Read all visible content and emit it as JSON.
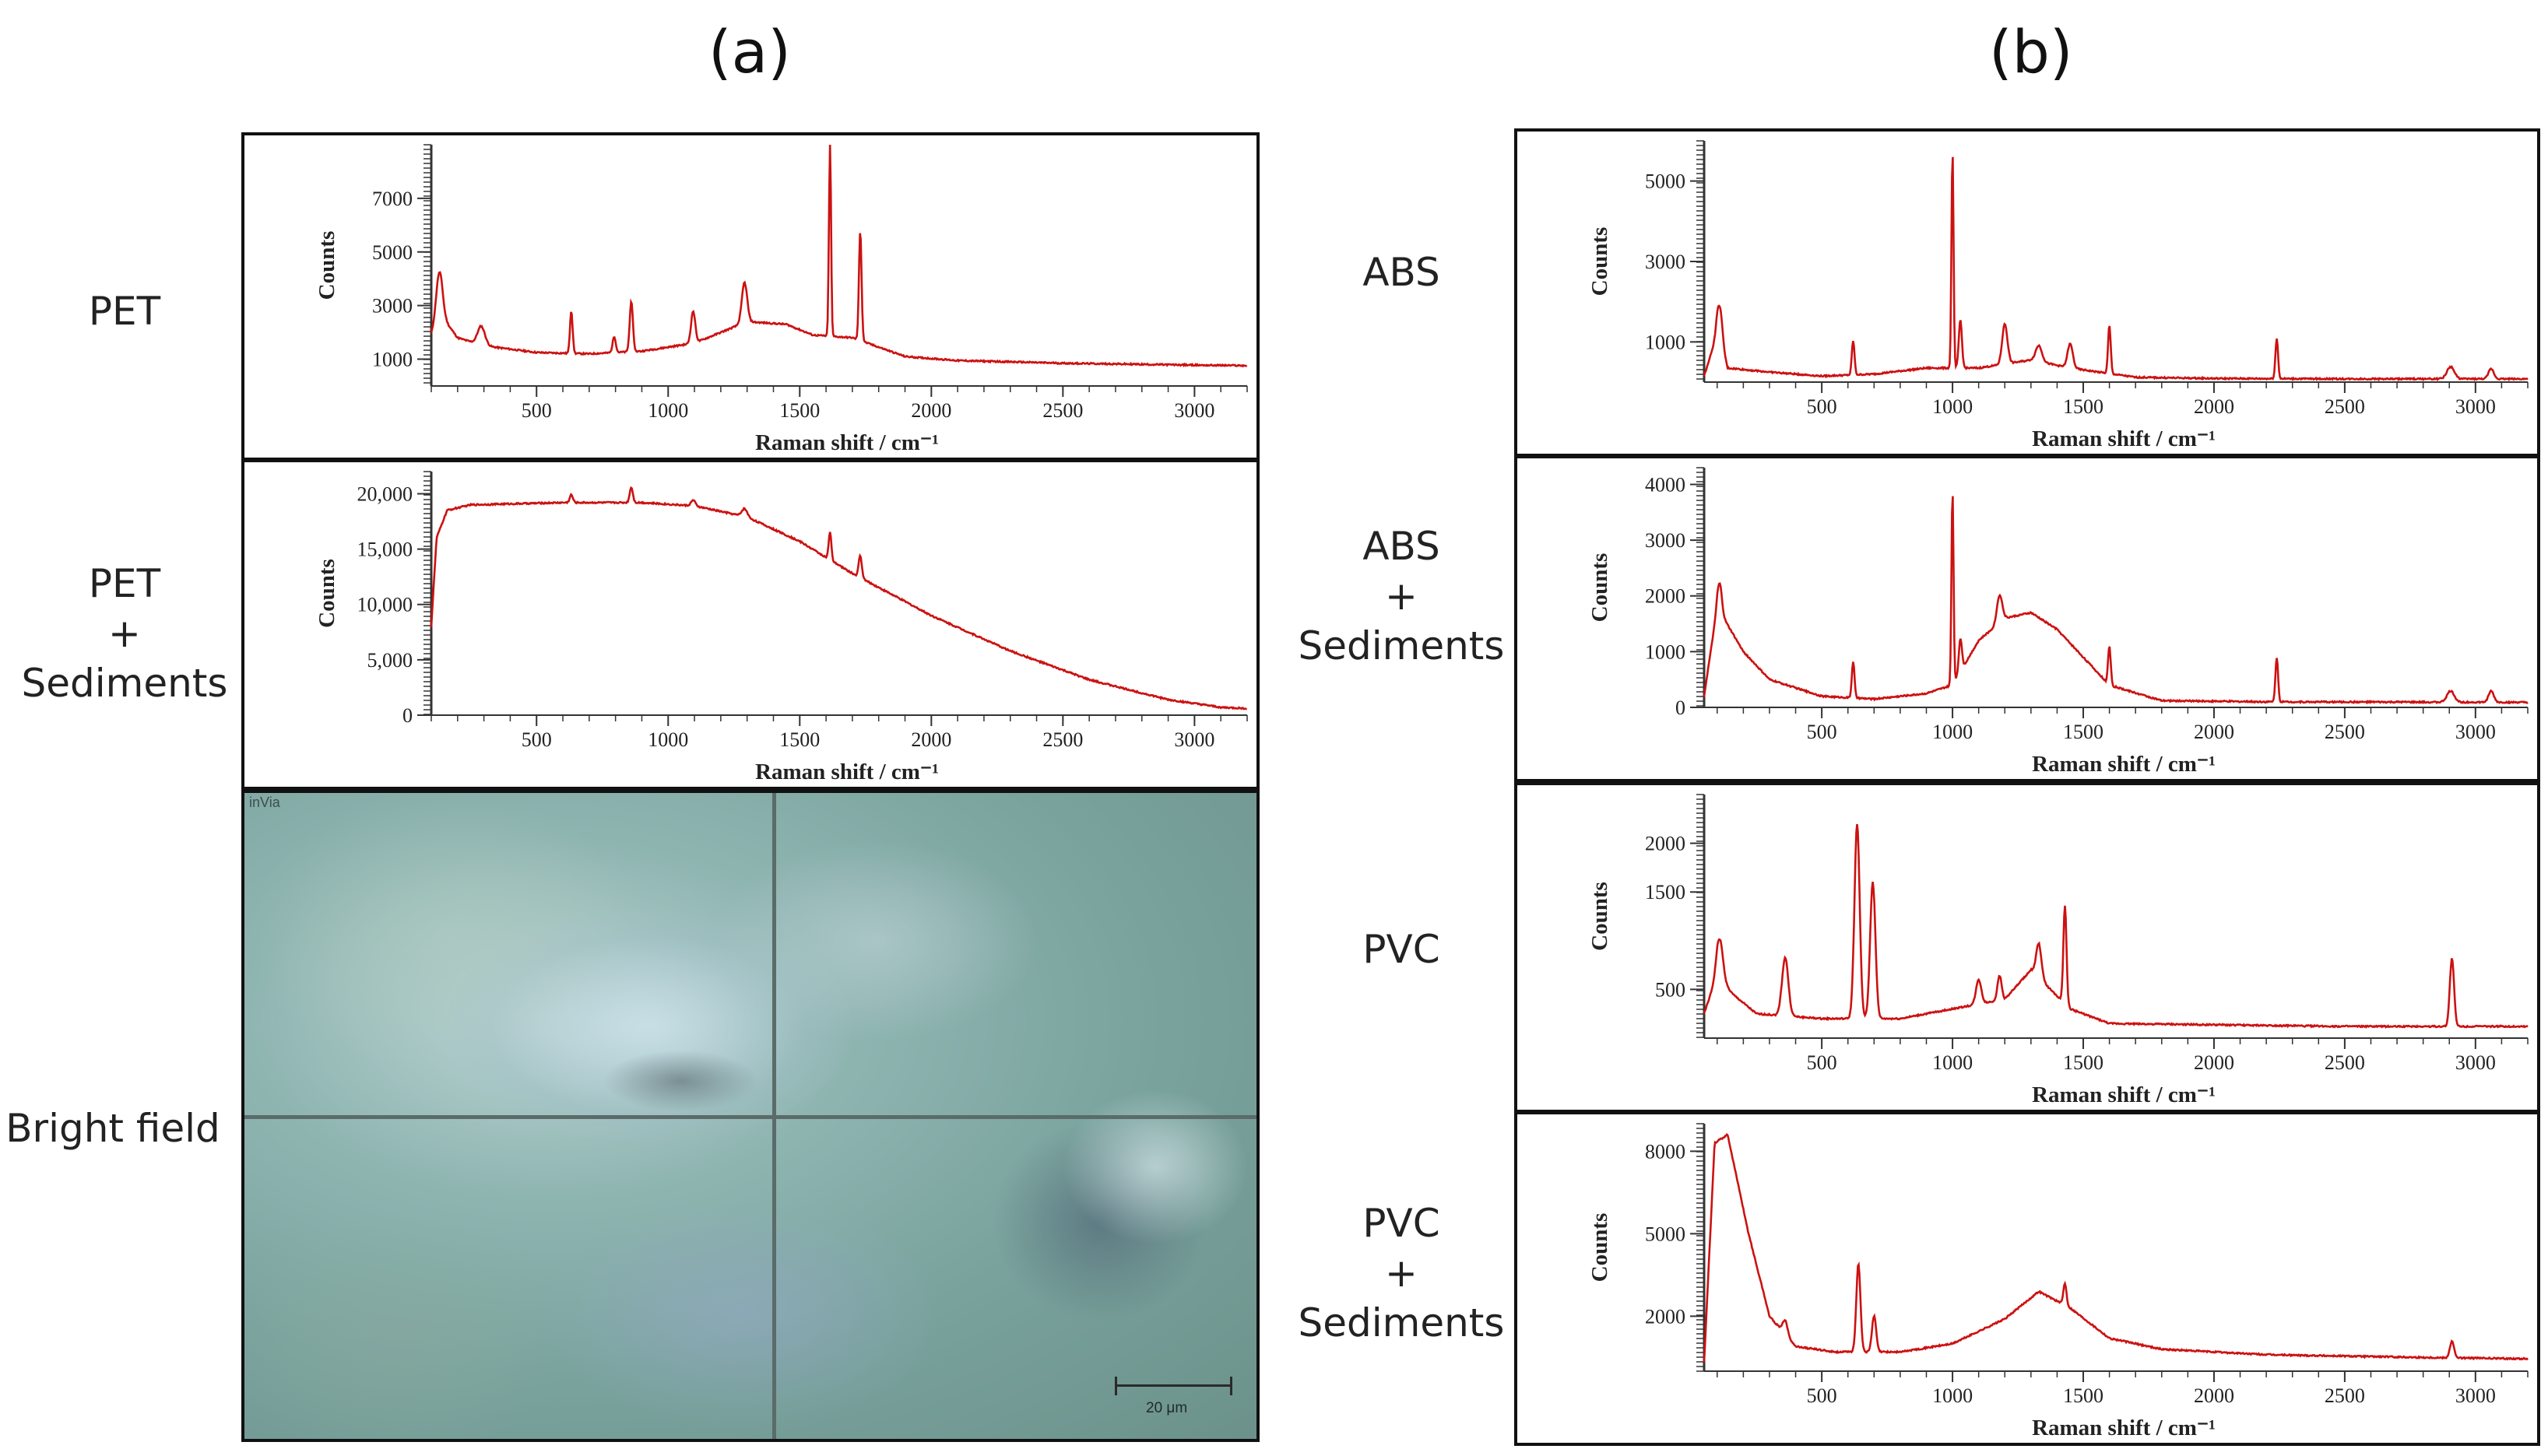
{
  "panels": {
    "a": "(a)",
    "b": "(b)"
  },
  "row_labels": {
    "pet": "PET",
    "pet_sed": "PET\n+\nSediments",
    "bright": "Bright field",
    "abs": "ABS",
    "abs_sed": "ABS\n+\nSediments",
    "pvc": "PVC",
    "pvc_sed": "PVC\n+\nSediments"
  },
  "microscope": {
    "tag": "inVia",
    "scale_label": "20 μm"
  },
  "colors": {
    "spectrum": "#cc1111",
    "axis": "#333333"
  },
  "chart_data": [
    {
      "id": "pet",
      "type": "line",
      "title": "PET",
      "xlabel": "Raman shift / cm⁻¹",
      "ylabel": "Counts",
      "xlim": [
        100,
        3200
      ],
      "ylim": [
        0,
        9000
      ],
      "xticks": [
        500,
        1000,
        1500,
        2000,
        2500,
        3000
      ],
      "xtick_labels": [
        "500",
        "1000",
        "1500",
        "2000",
        "2500",
        "3000"
      ],
      "yticks": [
        1000,
        3000,
        5000,
        7000
      ],
      "ytick_labels": [
        "1000",
        "3000",
        "5000",
        "7000"
      ],
      "baseline": [
        [
          100,
          1900
        ],
        [
          140,
          2600
        ],
        [
          200,
          1800
        ],
        [
          300,
          1500
        ],
        [
          500,
          1250
        ],
        [
          700,
          1200
        ],
        [
          900,
          1300
        ],
        [
          1100,
          1600
        ],
        [
          1300,
          2400
        ],
        [
          1450,
          2300
        ],
        [
          1550,
          1900
        ],
        [
          1700,
          1800
        ],
        [
          1900,
          1100
        ],
        [
          2100,
          950
        ],
        [
          2500,
          850
        ],
        [
          3000,
          780
        ],
        [
          3200,
          760
        ]
      ],
      "peaks": [
        [
          130,
          1800,
          12
        ],
        [
          290,
          700,
          14
        ],
        [
          632,
          1600,
          5
        ],
        [
          795,
          600,
          6
        ],
        [
          860,
          1900,
          6
        ],
        [
          1095,
          1200,
          8
        ],
        [
          1290,
          1500,
          10
        ],
        [
          1615,
          7200,
          4
        ],
        [
          1730,
          4100,
          5
        ]
      ]
    },
    {
      "id": "pet_sed",
      "type": "line",
      "title": "PET + Sediments",
      "xlabel": "Raman shift / cm⁻¹",
      "ylabel": "Counts",
      "xlim": [
        100,
        3200
      ],
      "ylim": [
        0,
        22000
      ],
      "xticks": [
        500,
        1000,
        1500,
        2000,
        2500,
        3000
      ],
      "xtick_labels": [
        "500",
        "1000",
        "1500",
        "2000",
        "2500",
        "3000"
      ],
      "yticks": [
        0,
        5000,
        10000,
        15000,
        20000
      ],
      "ytick_labels": [
        "0",
        "5,000",
        "10,000",
        "15,000",
        "20,000"
      ],
      "baseline": [
        [
          100,
          8000
        ],
        [
          120,
          16000
        ],
        [
          160,
          18500
        ],
        [
          250,
          19000
        ],
        [
          600,
          19200
        ],
        [
          900,
          19200
        ],
        [
          1100,
          18900
        ],
        [
          1300,
          17900
        ],
        [
          1500,
          15700
        ],
        [
          1700,
          12800
        ],
        [
          2000,
          9000
        ],
        [
          2300,
          5800
        ],
        [
          2600,
          3200
        ],
        [
          2900,
          1400
        ],
        [
          3100,
          700
        ],
        [
          3200,
          600
        ]
      ],
      "peaks": [
        [
          632,
          700,
          6
        ],
        [
          860,
          1400,
          6
        ],
        [
          1095,
          500,
          8
        ],
        [
          1290,
          700,
          10
        ],
        [
          1615,
          2500,
          5
        ],
        [
          1730,
          2000,
          6
        ]
      ]
    },
    {
      "id": "abs",
      "type": "line",
      "title": "ABS",
      "xlabel": "Raman shift / cm⁻¹",
      "ylabel": "Counts",
      "xlim": [
        50,
        3200
      ],
      "ylim": [
        0,
        6000
      ],
      "xticks": [
        500,
        1000,
        1500,
        2000,
        2500,
        3000
      ],
      "xtick_labels": [
        "500",
        "1000",
        "1500",
        "2000",
        "2500",
        "3000"
      ],
      "yticks": [
        1000,
        3000,
        5000
      ],
      "ytick_labels": [
        "1000",
        "3000",
        "5000"
      ],
      "baseline": [
        [
          50,
          150
        ],
        [
          100,
          1200
        ],
        [
          140,
          350
        ],
        [
          300,
          250
        ],
        [
          500,
          150
        ],
        [
          700,
          200
        ],
        [
          900,
          350
        ],
        [
          1100,
          350
        ],
        [
          1300,
          550
        ],
        [
          1450,
          350
        ],
        [
          1700,
          120
        ],
        [
          2000,
          90
        ],
        [
          2500,
          80
        ],
        [
          3200,
          80
        ]
      ],
      "peaks": [
        [
          110,
          900,
          10
        ],
        [
          620,
          850,
          5
        ],
        [
          1000,
          5400,
          4
        ],
        [
          1030,
          1200,
          6
        ],
        [
          1200,
          1000,
          10
        ],
        [
          1330,
          400,
          12
        ],
        [
          1450,
          600,
          10
        ],
        [
          1600,
          1200,
          5
        ],
        [
          2240,
          1000,
          5
        ],
        [
          2905,
          300,
          14
        ],
        [
          3060,
          250,
          10
        ]
      ]
    },
    {
      "id": "abs_sed",
      "type": "line",
      "title": "ABS + Sediments",
      "xlabel": "Raman shift / cm⁻¹",
      "ylabel": "Counts",
      "xlim": [
        50,
        3200
      ],
      "ylim": [
        0,
        4300
      ],
      "xticks": [
        500,
        1000,
        1500,
        2000,
        2500,
        3000
      ],
      "xtick_labels": [
        "500",
        "1000",
        "1500",
        "2000",
        "2500",
        "3000"
      ],
      "yticks": [
        0,
        1000,
        2000,
        3000,
        4000
      ],
      "ytick_labels": [
        "0",
        "1000",
        "2000",
        "3000",
        "4000"
      ],
      "baseline": [
        [
          50,
          200
        ],
        [
          100,
          1800
        ],
        [
          200,
          1000
        ],
        [
          300,
          500
        ],
        [
          500,
          200
        ],
        [
          700,
          150
        ],
        [
          900,
          250
        ],
        [
          1000,
          400
        ],
        [
          1100,
          1200
        ],
        [
          1200,
          1600
        ],
        [
          1300,
          1700
        ],
        [
          1400,
          1400
        ],
        [
          1500,
          900
        ],
        [
          1600,
          400
        ],
        [
          1800,
          120
        ],
        [
          2200,
          100
        ],
        [
          3200,
          90
        ]
      ],
      "peaks": [
        [
          110,
          500,
          8
        ],
        [
          620,
          650,
          5
        ],
        [
          1000,
          3500,
          4
        ],
        [
          1030,
          600,
          6
        ],
        [
          1180,
          500,
          10
        ],
        [
          1600,
          700,
          5
        ],
        [
          2240,
          800,
          5
        ],
        [
          2905,
          200,
          14
        ],
        [
          3060,
          200,
          10
        ]
      ]
    },
    {
      "id": "pvc",
      "type": "line",
      "title": "PVC",
      "xlabel": "Raman shift / cm⁻¹",
      "ylabel": "Counts",
      "xlim": [
        50,
        3200
      ],
      "ylim": [
        0,
        2500
      ],
      "xticks": [
        500,
        1000,
        1500,
        2000,
        2500,
        3000
      ],
      "xtick_labels": [
        "500",
        "1000",
        "1500",
        "2000",
        "2500",
        "3000"
      ],
      "yticks": [
        500,
        1500,
        2000
      ],
      "ytick_labels": [
        "500",
        "1500",
        "2000"
      ],
      "baseline": [
        [
          50,
          250
        ],
        [
          100,
          650
        ],
        [
          160,
          450
        ],
        [
          250,
          250
        ],
        [
          500,
          200
        ],
        [
          800,
          200
        ],
        [
          1000,
          300
        ],
        [
          1200,
          400
        ],
        [
          1300,
          700
        ],
        [
          1450,
          300
        ],
        [
          1600,
          150
        ],
        [
          2500,
          120
        ],
        [
          3200,
          120
        ]
      ],
      "peaks": [
        [
          110,
          400,
          12
        ],
        [
          360,
          600,
          12
        ],
        [
          635,
          2000,
          10
        ],
        [
          695,
          1400,
          10
        ],
        [
          1100,
          250,
          10
        ],
        [
          1180,
          250,
          8
        ],
        [
          1330,
          350,
          10
        ],
        [
          1430,
          1000,
          6
        ],
        [
          2910,
          700,
          8
        ]
      ]
    },
    {
      "id": "pvc_sed",
      "type": "line",
      "title": "PVC + Sediments",
      "xlabel": "Raman shift / cm⁻¹",
      "ylabel": "Counts",
      "xlim": [
        50,
        3200
      ],
      "ylim": [
        0,
        9000
      ],
      "xticks": [
        500,
        1000,
        1500,
        2000,
        2500,
        3000
      ],
      "xtick_labels": [
        "500",
        "1000",
        "1500",
        "2000",
        "2500",
        "3000"
      ],
      "yticks": [
        2000,
        5000,
        8000
      ],
      "ytick_labels": [
        "2000",
        "5000",
        "8000"
      ],
      "baseline": [
        [
          50,
          300
        ],
        [
          90,
          8300
        ],
        [
          140,
          8600
        ],
        [
          220,
          5000
        ],
        [
          300,
          2000
        ],
        [
          400,
          900
        ],
        [
          550,
          700
        ],
        [
          800,
          700
        ],
        [
          1000,
          1000
        ],
        [
          1200,
          1900
        ],
        [
          1330,
          2900
        ],
        [
          1450,
          2300
        ],
        [
          1600,
          1200
        ],
        [
          1800,
          800
        ],
        [
          2200,
          600
        ],
        [
          2800,
          500
        ],
        [
          3200,
          450
        ]
      ],
      "peaks": [
        [
          360,
          500,
          10
        ],
        [
          640,
          3200,
          8
        ],
        [
          700,
          1300,
          8
        ],
        [
          1430,
          800,
          6
        ],
        [
          2910,
          600,
          8
        ]
      ]
    }
  ]
}
